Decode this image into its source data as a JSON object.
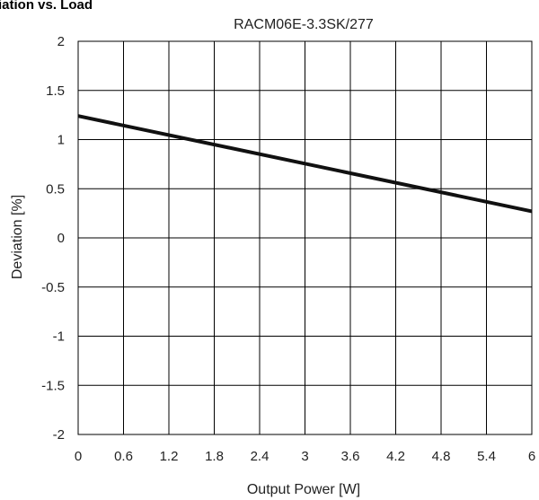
{
  "header": {
    "partial_title": "iation vs. Load"
  },
  "chart_data": {
    "type": "line",
    "title": "RACM06E-3.3SK/277",
    "xlabel": "Output Power [W]",
    "ylabel": "Deviation [%]",
    "xlim": [
      0,
      6
    ],
    "ylim": [
      -2,
      2
    ],
    "xticks": [
      "0",
      "0.6",
      "1.2",
      "1.8",
      "2.4",
      "3",
      "3.6",
      "4.2",
      "4.8",
      "5.4",
      "6"
    ],
    "yticks": [
      "2",
      "1.5",
      "1",
      "0.5",
      "0",
      "-0.5",
      "-1",
      "-1.5",
      "-2"
    ],
    "grid": true,
    "series": [
      {
        "x": [
          0,
          6
        ],
        "y": [
          1.24,
          0.27
        ]
      }
    ],
    "colors": {
      "line": "#111111",
      "grid": "#000000",
      "text": "#222222"
    }
  }
}
